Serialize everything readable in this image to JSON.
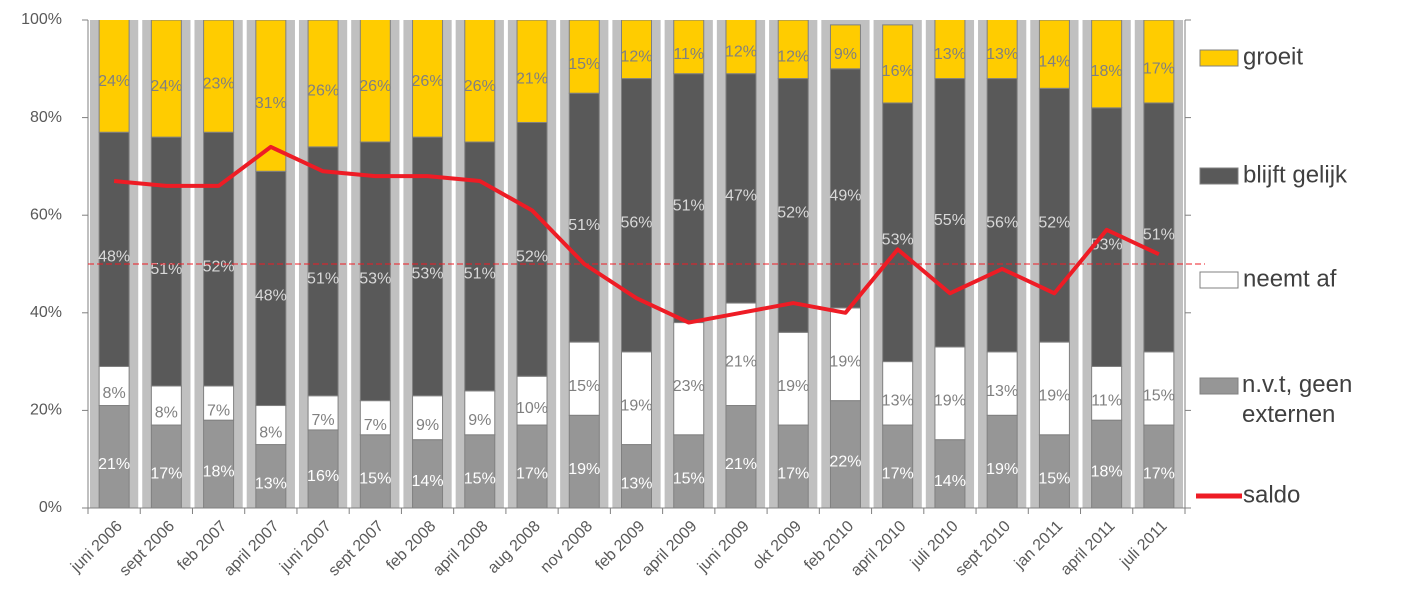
{
  "chart_data": {
    "type": "bar",
    "stacked": true,
    "categories": [
      "juni 2006",
      "sept 2006",
      "feb 2007",
      "april 2007",
      "juni 2007",
      "sept 2007",
      "feb 2008",
      "april 2008",
      "aug 2008",
      "nov 2008",
      "feb 2009",
      "april 2009",
      "juni 2009",
      "okt 2009",
      "feb 2010",
      "april 2010",
      "juli 2010",
      "sept 2010",
      "jan 2011",
      "april 2011",
      "juli 2011"
    ],
    "series": [
      {
        "name": "n.v.t, geen externen",
        "color": "#969696",
        "values": [
          21,
          17,
          18,
          13,
          16,
          15,
          14,
          15,
          17,
          19,
          13,
          15,
          21,
          17,
          22,
          17,
          14,
          19,
          15,
          18,
          17
        ],
        "value_labels": [
          "21%",
          "17%",
          "18%",
          "13%",
          "16%",
          "15%",
          "14%",
          "15%",
          "17%",
          "19%",
          "13%",
          "15%",
          "21%",
          "17%",
          "22%",
          "17%",
          "14%",
          "19%",
          "15%",
          "18%",
          "17%"
        ]
      },
      {
        "name": "neemt af",
        "color": "#ffffff",
        "values": [
          8,
          8,
          7,
          8,
          7,
          7,
          9,
          9,
          10,
          15,
          19,
          23,
          21,
          19,
          19,
          13,
          19,
          13,
          19,
          11,
          15
        ],
        "value_labels": [
          "8%",
          "8%",
          "7%",
          "8%",
          "7%",
          "7%",
          "9%",
          "9%",
          "10%",
          "15%",
          "19%",
          "23%",
          "21%",
          "19%",
          "19%",
          "13%",
          "19%",
          "13%",
          "19%",
          "11%",
          "15%"
        ]
      },
      {
        "name": "blijft gelijk",
        "color": "#595959",
        "values": [
          48,
          51,
          52,
          48,
          51,
          53,
          53,
          51,
          52,
          51,
          56,
          51,
          47,
          52,
          49,
          53,
          55,
          56,
          52,
          53,
          51
        ],
        "value_labels": [
          "48%",
          "51%",
          "52%",
          "48%",
          "51%",
          "53%",
          "53%",
          "51%",
          "52%",
          "51%",
          "56%",
          "51%",
          "47%",
          "52%",
          "49%",
          "53%",
          "55%",
          "56%",
          "52%",
          "53%",
          "51%"
        ]
      },
      {
        "name": "groeit",
        "color": "#ffcc00",
        "values": [
          24,
          24,
          23,
          31,
          26,
          26,
          26,
          26,
          21,
          15,
          12,
          11,
          12,
          12,
          9,
          16,
          13,
          13,
          14,
          18,
          17
        ],
        "value_labels": [
          "24%",
          "24%",
          "23%",
          "31%",
          "26%",
          "26%",
          "26%",
          "26%",
          "21%",
          "15%",
          "12%",
          "11%",
          "12%",
          "12%",
          "9%",
          "16%",
          "13%",
          "13%",
          "14%",
          "18%",
          "17%"
        ]
      },
      {
        "name": "saldo",
        "type": "line",
        "color": "#ee1c25",
        "values": [
          67,
          66,
          66,
          74,
          69,
          68,
          68,
          67,
          61,
          50,
          43,
          38,
          40,
          42,
          40,
          53,
          44,
          49,
          44,
          57,
          52
        ]
      }
    ],
    "ylim": [
      0,
      100
    ],
    "yticks": [
      {
        "value": 0,
        "label": "0%"
      },
      {
        "value": 20,
        "label": "20%"
      },
      {
        "value": 40,
        "label": "40%"
      },
      {
        "value": 60,
        "label": "60%"
      },
      {
        "value": 80,
        "label": "80%"
      },
      {
        "value": 100,
        "label": "100%"
      }
    ],
    "reference_line": 50,
    "reference_color": "#ee1c25",
    "legend": "right"
  }
}
